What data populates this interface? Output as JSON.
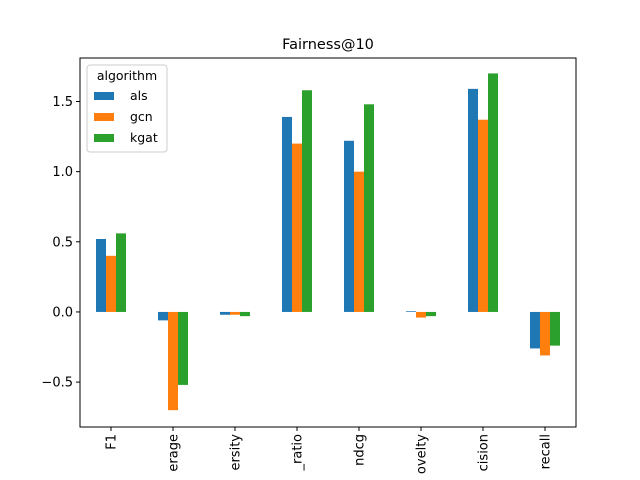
{
  "chart_data": {
    "type": "bar",
    "title": "Fairness@10",
    "xlabel": "",
    "ylabel": "",
    "categories": [
      "F1",
      "coverage",
      "diversity",
      "hit_ratio",
      "ndcg",
      "novelty",
      "precision",
      "recall"
    ],
    "tick_labels_visible": [
      "F1",
      "erage",
      "ersity",
      "_ratio",
      "ndcg",
      "ovelty",
      "cision",
      "recall"
    ],
    "series": [
      {
        "name": "als",
        "color": "#1f77b4",
        "values": [
          0.52,
          -0.06,
          -0.02,
          1.39,
          1.22,
          0.005,
          1.59,
          -0.26
        ]
      },
      {
        "name": "gcn",
        "color": "#ff7f0e",
        "values": [
          0.4,
          -0.7,
          -0.02,
          1.2,
          1.0,
          -0.04,
          1.37,
          -0.31
        ]
      },
      {
        "name": "kgat",
        "color": "#2ca02c",
        "values": [
          0.56,
          -0.52,
          -0.03,
          1.58,
          1.48,
          -0.03,
          1.7,
          -0.24
        ]
      }
    ],
    "ylim": [
      -0.82,
      1.81
    ],
    "yticks": [
      -0.5,
      0.0,
      0.5,
      1.0,
      1.5
    ],
    "ytick_labels": [
      "−0.5",
      "0.0",
      "0.5",
      "1.0",
      "1.5"
    ],
    "grid": false,
    "legend": {
      "title": "algorithm",
      "position": "top-left"
    }
  }
}
